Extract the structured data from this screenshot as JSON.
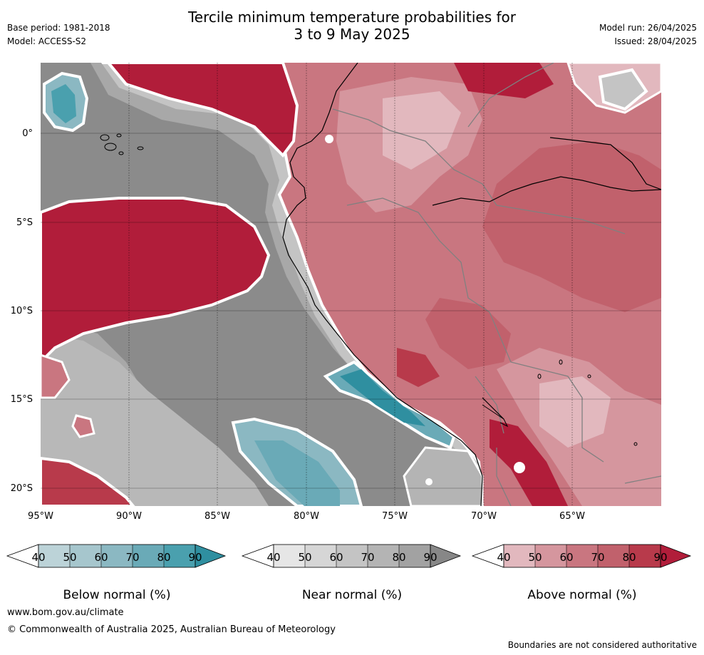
{
  "header": {
    "title_line1": "Tercile minimum temperature probabilities for",
    "title_line2": "3 to 9 May 2025",
    "base_period": "Base period: 1981-2018",
    "model": "Model: ACCESS-S2",
    "model_run": "Model run: 26/04/2025",
    "issued": "Issued: 28/04/2025"
  },
  "map": {
    "region": "Western South America and adjacent Pacific",
    "lon_range": [
      -95,
      -60
    ],
    "lat_range": [
      -21,
      4
    ],
    "lat_labels": [
      "0°",
      "5°S",
      "10°S",
      "15°S",
      "20°S"
    ],
    "lon_labels": [
      "95°W",
      "90°W",
      "85°W",
      "80°W",
      "75°W",
      "70°W",
      "65°W"
    ],
    "grid_lines": true
  },
  "colorbars": [
    {
      "name": "below",
      "label": "Below normal (%)",
      "ticks": [
        "40",
        "50",
        "60",
        "70",
        "80",
        "90"
      ],
      "colors": [
        "#bcd3d8",
        "#a6c6cd",
        "#8bb8c2",
        "#6aaab7",
        "#4aa0ae",
        "#2f8fa0"
      ]
    },
    {
      "name": "near",
      "label": "Near normal (%)",
      "ticks": [
        "40",
        "50",
        "60",
        "70",
        "80",
        "90"
      ],
      "colors": [
        "#e6e6e6",
        "#d6d6d6",
        "#c4c4c4",
        "#b4b4b4",
        "#a2a2a2",
        "#878787"
      ]
    },
    {
      "name": "above",
      "label": "Above normal (%)",
      "ticks": [
        "40",
        "50",
        "60",
        "70",
        "80",
        "90"
      ],
      "colors": [
        "#e2b8be",
        "#d5969e",
        "#c97680",
        "#c1616c",
        "#b83a4b",
        "#b11d3a"
      ]
    }
  ],
  "footer": {
    "website": "www.bom.gov.au/climate",
    "copyright": "© Commonwealth of Australia 2025, Australian Bureau of Meteorology",
    "disclaimer": "Boundaries are not considered authoritative"
  }
}
